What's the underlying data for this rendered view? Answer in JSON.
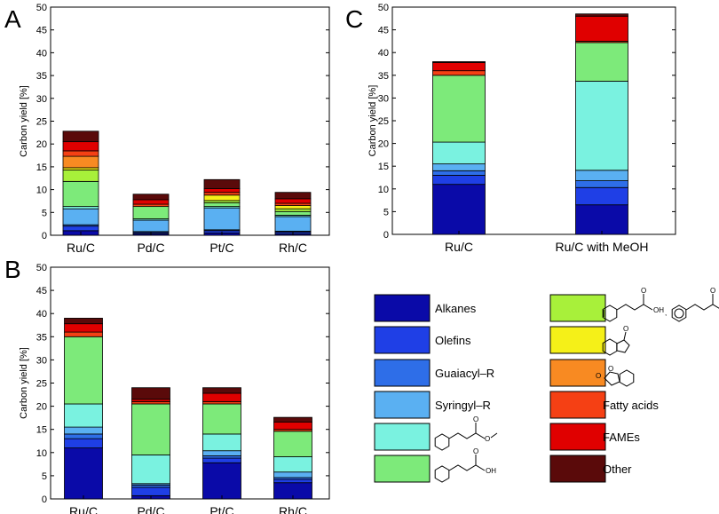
{
  "chart_data": [
    {
      "type": "bar",
      "stacked": true,
      "panel_label": "A",
      "title": "",
      "xlabel": "",
      "ylabel": "Carbon yield [%]",
      "ylim": [
        0,
        50
      ],
      "yticks": [
        "0",
        "5",
        "10",
        "15",
        "20",
        "25",
        "30",
        "35",
        "40",
        "45",
        "50"
      ],
      "categories": [
        "Ru/C",
        "Pd/C",
        "Pt/C",
        "Rh/C"
      ],
      "series": [
        {
          "name": "Alkanes",
          "values": [
            1.0,
            0.3,
            0.5,
            0.3
          ]
        },
        {
          "name": "Olefins",
          "values": [
            1.0,
            0.3,
            0.5,
            0.4
          ]
        },
        {
          "name": "Guaiacyl-R",
          "values": [
            0.3,
            0.2,
            0.2,
            0.2
          ]
        },
        {
          "name": "Syringyl-R",
          "values": [
            3.5,
            2.5,
            4.8,
            3.2
          ]
        },
        {
          "name": "Methyl ester (cyclohexyl)",
          "values": [
            0.5,
            0.3,
            0.3,
            0.3
          ]
        },
        {
          "name": "Acid (cyclohexyl)",
          "values": [
            5.5,
            2.7,
            0.8,
            0.8
          ]
        },
        {
          "name": "Acid (cyclohexenyl/phenyl)",
          "values": [
            2.5,
            0.0,
            0.5,
            0.6
          ]
        },
        {
          "name": "Ketone (bicyclic)",
          "values": [
            0.5,
            0.0,
            1.2,
            0.7
          ]
        },
        {
          "name": "Spiro lactone",
          "values": [
            2.5,
            0.0,
            0.0,
            0.0
          ]
        },
        {
          "name": "Fatty acids",
          "values": [
            1.2,
            0.5,
            0.6,
            0.5
          ]
        },
        {
          "name": "FAMEs",
          "values": [
            2.0,
            1.0,
            0.8,
            1.0
          ]
        },
        {
          "name": "Other",
          "values": [
            2.3,
            1.2,
            2.0,
            1.4
          ]
        }
      ]
    },
    {
      "type": "bar",
      "stacked": true,
      "panel_label": "B",
      "title": "",
      "xlabel": "",
      "ylabel": "Carbon yield [%]",
      "ylim": [
        0,
        50
      ],
      "yticks": [
        "0",
        "5",
        "10",
        "15",
        "20",
        "25",
        "30",
        "35",
        "40",
        "45",
        "50"
      ],
      "categories": [
        "Ru/C",
        "Pd/C",
        "Pt/C",
        "Rh/C"
      ],
      "series": [
        {
          "name": "Alkanes",
          "values": [
            11.0,
            0.7,
            7.8,
            3.5
          ]
        },
        {
          "name": "Olefins",
          "values": [
            2.0,
            1.8,
            1.0,
            0.7
          ]
        },
        {
          "name": "Guaiacyl-R",
          "values": [
            1.0,
            0.5,
            0.5,
            0.4
          ]
        },
        {
          "name": "Syringyl-R",
          "values": [
            1.5,
            0.3,
            1.1,
            1.2
          ]
        },
        {
          "name": "Methyl ester (cyclohexyl)",
          "values": [
            5.0,
            6.2,
            3.6,
            3.3
          ]
        },
        {
          "name": "Acid (cyclohexyl)",
          "values": [
            14.5,
            11.0,
            6.5,
            5.5
          ]
        },
        {
          "name": "Acid (cyclohexenyl/phenyl)",
          "values": [
            0.0,
            0.0,
            0.0,
            0.0
          ]
        },
        {
          "name": "Ketone (bicyclic)",
          "values": [
            0.0,
            0.0,
            0.0,
            0.0
          ]
        },
        {
          "name": "Spiro lactone",
          "values": [
            0.0,
            0.0,
            0.0,
            0.0
          ]
        },
        {
          "name": "Fatty acids",
          "values": [
            1.0,
            0.5,
            0.5,
            0.4
          ]
        },
        {
          "name": "FAMEs",
          "values": [
            1.8,
            0.5,
            1.8,
            1.6
          ]
        },
        {
          "name": "Other",
          "values": [
            1.2,
            2.5,
            1.2,
            1.0
          ]
        }
      ]
    },
    {
      "type": "bar",
      "stacked": true,
      "panel_label": "C",
      "title": "",
      "xlabel": "",
      "ylabel": "Carbon yield [%]",
      "ylim": [
        0,
        50
      ],
      "yticks": [
        "0",
        "5",
        "10",
        "15",
        "20",
        "25",
        "30",
        "35",
        "40",
        "45",
        "50"
      ],
      "categories": [
        "Ru/C",
        "Ru/C with MeOH"
      ],
      "series": [
        {
          "name": "Alkanes",
          "values": [
            11.0,
            6.5
          ]
        },
        {
          "name": "Olefins",
          "values": [
            2.0,
            3.8
          ]
        },
        {
          "name": "Guaiacyl-R",
          "values": [
            1.0,
            1.5
          ]
        },
        {
          "name": "Syringyl-R",
          "values": [
            1.5,
            2.3
          ]
        },
        {
          "name": "Methyl ester (cyclohexyl)",
          "values": [
            4.8,
            19.6
          ]
        },
        {
          "name": "Acid (cyclohexyl)",
          "values": [
            14.7,
            8.5
          ]
        },
        {
          "name": "Acid (cyclohexenyl/phenyl)",
          "values": [
            0.0,
            0.0
          ]
        },
        {
          "name": "Ketone (bicyclic)",
          "values": [
            0.0,
            0.0
          ]
        },
        {
          "name": "Spiro lactone",
          "values": [
            0.0,
            0.0
          ]
        },
        {
          "name": "Fatty acids",
          "values": [
            1.0,
            0.3
          ]
        },
        {
          "name": "FAMEs",
          "values": [
            1.8,
            5.5
          ]
        },
        {
          "name": "Other",
          "values": [
            0.2,
            0.5
          ]
        }
      ]
    }
  ],
  "legend": {
    "left": [
      {
        "series": "Alkanes",
        "label": "Alkanes",
        "color": "#0a0aa8"
      },
      {
        "series": "Olefins",
        "label": "Olefins",
        "color": "#1f3fe6"
      },
      {
        "series": "Guaiacyl-R",
        "label": "Guaiacyl–R",
        "color": "#2e6ee8"
      },
      {
        "series": "Syringyl-R",
        "label": "Syringyl–R",
        "color": "#5ab0f2"
      },
      {
        "series": "Methyl ester (cyclohexyl)",
        "label": "",
        "structure": "methyl-ester-cyclohexyl",
        "color": "#7af2e0"
      },
      {
        "series": "Acid (cyclohexyl)",
        "label": "",
        "structure": "acid-cyclohexyl",
        "color": "#7dea7a"
      }
    ],
    "right": [
      {
        "series": "Acid (cyclohexenyl/phenyl)",
        "label": "",
        "structure": "acid-cyclohexenyl-and-phenyl",
        "color": "#a8f03a"
      },
      {
        "series": "Ketone (bicyclic)",
        "label": "",
        "structure": "bicyclic-ketone",
        "color": "#f5f018"
      },
      {
        "series": "Spiro lactone",
        "label": "",
        "structure": "spiro-lactone",
        "color": "#f88a22"
      },
      {
        "series": "Fatty acids",
        "label": "Fatty acids",
        "color": "#f54014"
      },
      {
        "series": "FAMEs",
        "label": "FAMEs",
        "color": "#e00000"
      },
      {
        "series": "Other",
        "label": "Other",
        "color": "#5a0a0a"
      }
    ]
  }
}
